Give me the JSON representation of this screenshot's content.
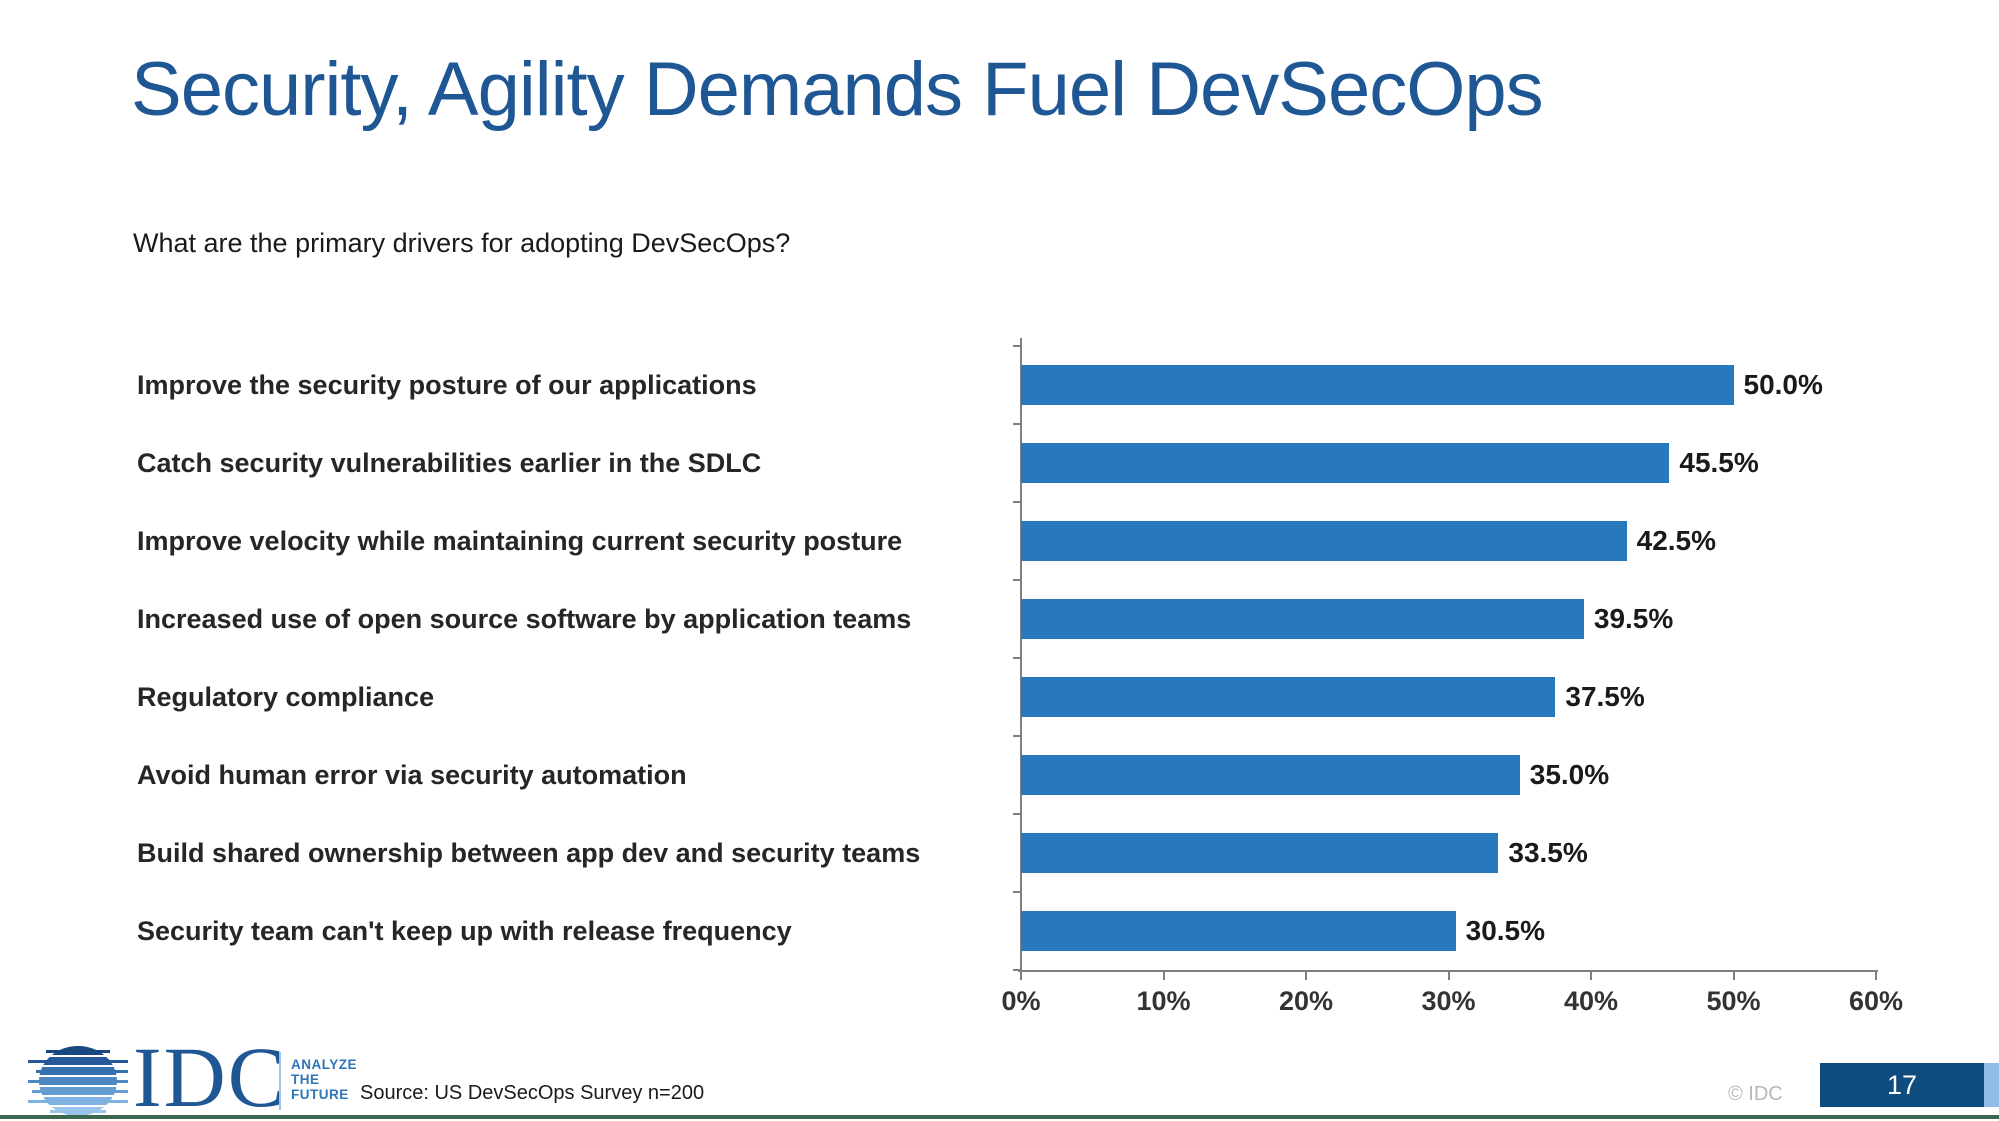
{
  "slide": {
    "title": "Security, Agility Demands Fuel DevSecOps",
    "subtitle": "What are the primary drivers for adopting DevSecOps?",
    "source": "Source: US DevSecOps Survey n=200",
    "copyright": "© IDC",
    "page_number": "17"
  },
  "logo": {
    "text": "IDC",
    "tagline_lines": {
      "0": "ANALYZE",
      "1": "THE",
      "2": "FUTURE"
    }
  },
  "chart_data": {
    "type": "bar",
    "orientation": "horizontal",
    "title": "",
    "xlabel": "",
    "ylabel": "",
    "categories": [
      "Improve the security posture of our applications",
      "Catch security vulnerabilities earlier in the SDLC",
      "Improve velocity while maintaining current security posture",
      "Increased use of open source software by application teams",
      "Regulatory compliance",
      "Avoid human error via security automation",
      "Build shared ownership between app dev and security teams",
      "Security team can't keep up with release frequency"
    ],
    "values": [
      50.0,
      45.5,
      42.5,
      39.5,
      37.5,
      35.0,
      33.5,
      30.5
    ],
    "value_labels": [
      "50.0%",
      "45.5%",
      "42.5%",
      "39.5%",
      "37.5%",
      "35.0%",
      "33.5%",
      "30.5%"
    ],
    "x_ticks": [
      "0%",
      "10%",
      "20%",
      "30%",
      "40%",
      "50%",
      "60%"
    ],
    "x_tick_values": [
      0,
      10,
      20,
      30,
      40,
      50,
      60
    ],
    "xlim": [
      0,
      60
    ],
    "grid": false,
    "legend": false,
    "data_labels": true,
    "bar_color": "#2878BD",
    "axis_color": "#808080",
    "label_color": "#262626"
  },
  "colors": {
    "title": "#1F5795",
    "tagline": "#2E75B6",
    "page_box": "#0F4C7E",
    "page_strip": "#8FBCE6",
    "bottom_line": "#3D664F"
  }
}
